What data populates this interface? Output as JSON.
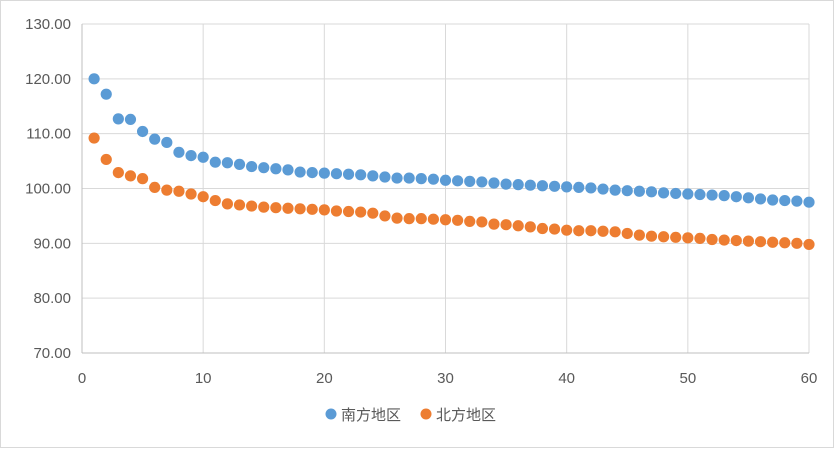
{
  "chart_data": {
    "type": "scatter",
    "title": "",
    "xlabel": "",
    "ylabel": "",
    "xlim": [
      0,
      60
    ],
    "ylim": [
      70,
      130
    ],
    "x_ticks": [
      "0",
      "10",
      "20",
      "30",
      "40",
      "50",
      "60"
    ],
    "y_ticks": [
      "70.00",
      "80.00",
      "90.00",
      "100.00",
      "110.00",
      "120.00",
      "130.00"
    ],
    "grid": true,
    "legend_position": "bottom",
    "colors": [
      "#5b9bd5",
      "#ed7d31"
    ],
    "series": [
      {
        "name": "南方地区",
        "x": [
          1,
          2,
          3,
          4,
          5,
          6,
          7,
          8,
          9,
          10,
          11,
          12,
          13,
          14,
          15,
          16,
          17,
          18,
          19,
          20,
          21,
          22,
          23,
          24,
          25,
          26,
          27,
          28,
          29,
          30,
          31,
          32,
          33,
          34,
          35,
          36,
          37,
          38,
          39,
          40,
          41,
          42,
          43,
          44,
          45,
          46,
          47,
          48,
          49,
          50,
          51,
          52,
          53,
          54,
          55,
          56,
          57,
          58,
          59,
          60
        ],
        "y": [
          120.0,
          117.2,
          112.7,
          112.6,
          110.4,
          109.0,
          108.4,
          106.6,
          106.0,
          105.7,
          104.8,
          104.7,
          104.4,
          104.0,
          103.8,
          103.6,
          103.4,
          103.0,
          102.9,
          102.8,
          102.7,
          102.6,
          102.5,
          102.3,
          102.1,
          101.9,
          101.9,
          101.8,
          101.7,
          101.5,
          101.4,
          101.3,
          101.2,
          101.0,
          100.8,
          100.7,
          100.6,
          100.5,
          100.4,
          100.3,
          100.2,
          100.1,
          99.9,
          99.7,
          99.6,
          99.5,
          99.4,
          99.2,
          99.1,
          99.0,
          98.9,
          98.8,
          98.7,
          98.5,
          98.3,
          98.1,
          97.9,
          97.8,
          97.7,
          97.5
        ]
      },
      {
        "name": "北方地区",
        "x": [
          1,
          2,
          3,
          4,
          5,
          6,
          7,
          8,
          9,
          10,
          11,
          12,
          13,
          14,
          15,
          16,
          17,
          18,
          19,
          20,
          21,
          22,
          23,
          24,
          25,
          26,
          27,
          28,
          29,
          30,
          31,
          32,
          33,
          34,
          35,
          36,
          37,
          38,
          39,
          40,
          41,
          42,
          43,
          44,
          45,
          46,
          47,
          48,
          49,
          50,
          51,
          52,
          53,
          54,
          55,
          56,
          57,
          58,
          59,
          60
        ],
        "y": [
          109.2,
          105.3,
          102.9,
          102.3,
          101.8,
          100.2,
          99.7,
          99.5,
          99.0,
          98.5,
          97.8,
          97.2,
          97.0,
          96.8,
          96.6,
          96.5,
          96.4,
          96.3,
          96.2,
          96.1,
          95.9,
          95.8,
          95.7,
          95.5,
          95.0,
          94.6,
          94.5,
          94.5,
          94.4,
          94.3,
          94.2,
          94.0,
          93.9,
          93.5,
          93.4,
          93.2,
          93.0,
          92.7,
          92.6,
          92.4,
          92.3,
          92.3,
          92.2,
          92.1,
          91.8,
          91.5,
          91.3,
          91.2,
          91.1,
          91.0,
          90.9,
          90.7,
          90.6,
          90.5,
          90.4,
          90.3,
          90.2,
          90.1,
          90.0,
          89.8
        ]
      }
    ]
  }
}
